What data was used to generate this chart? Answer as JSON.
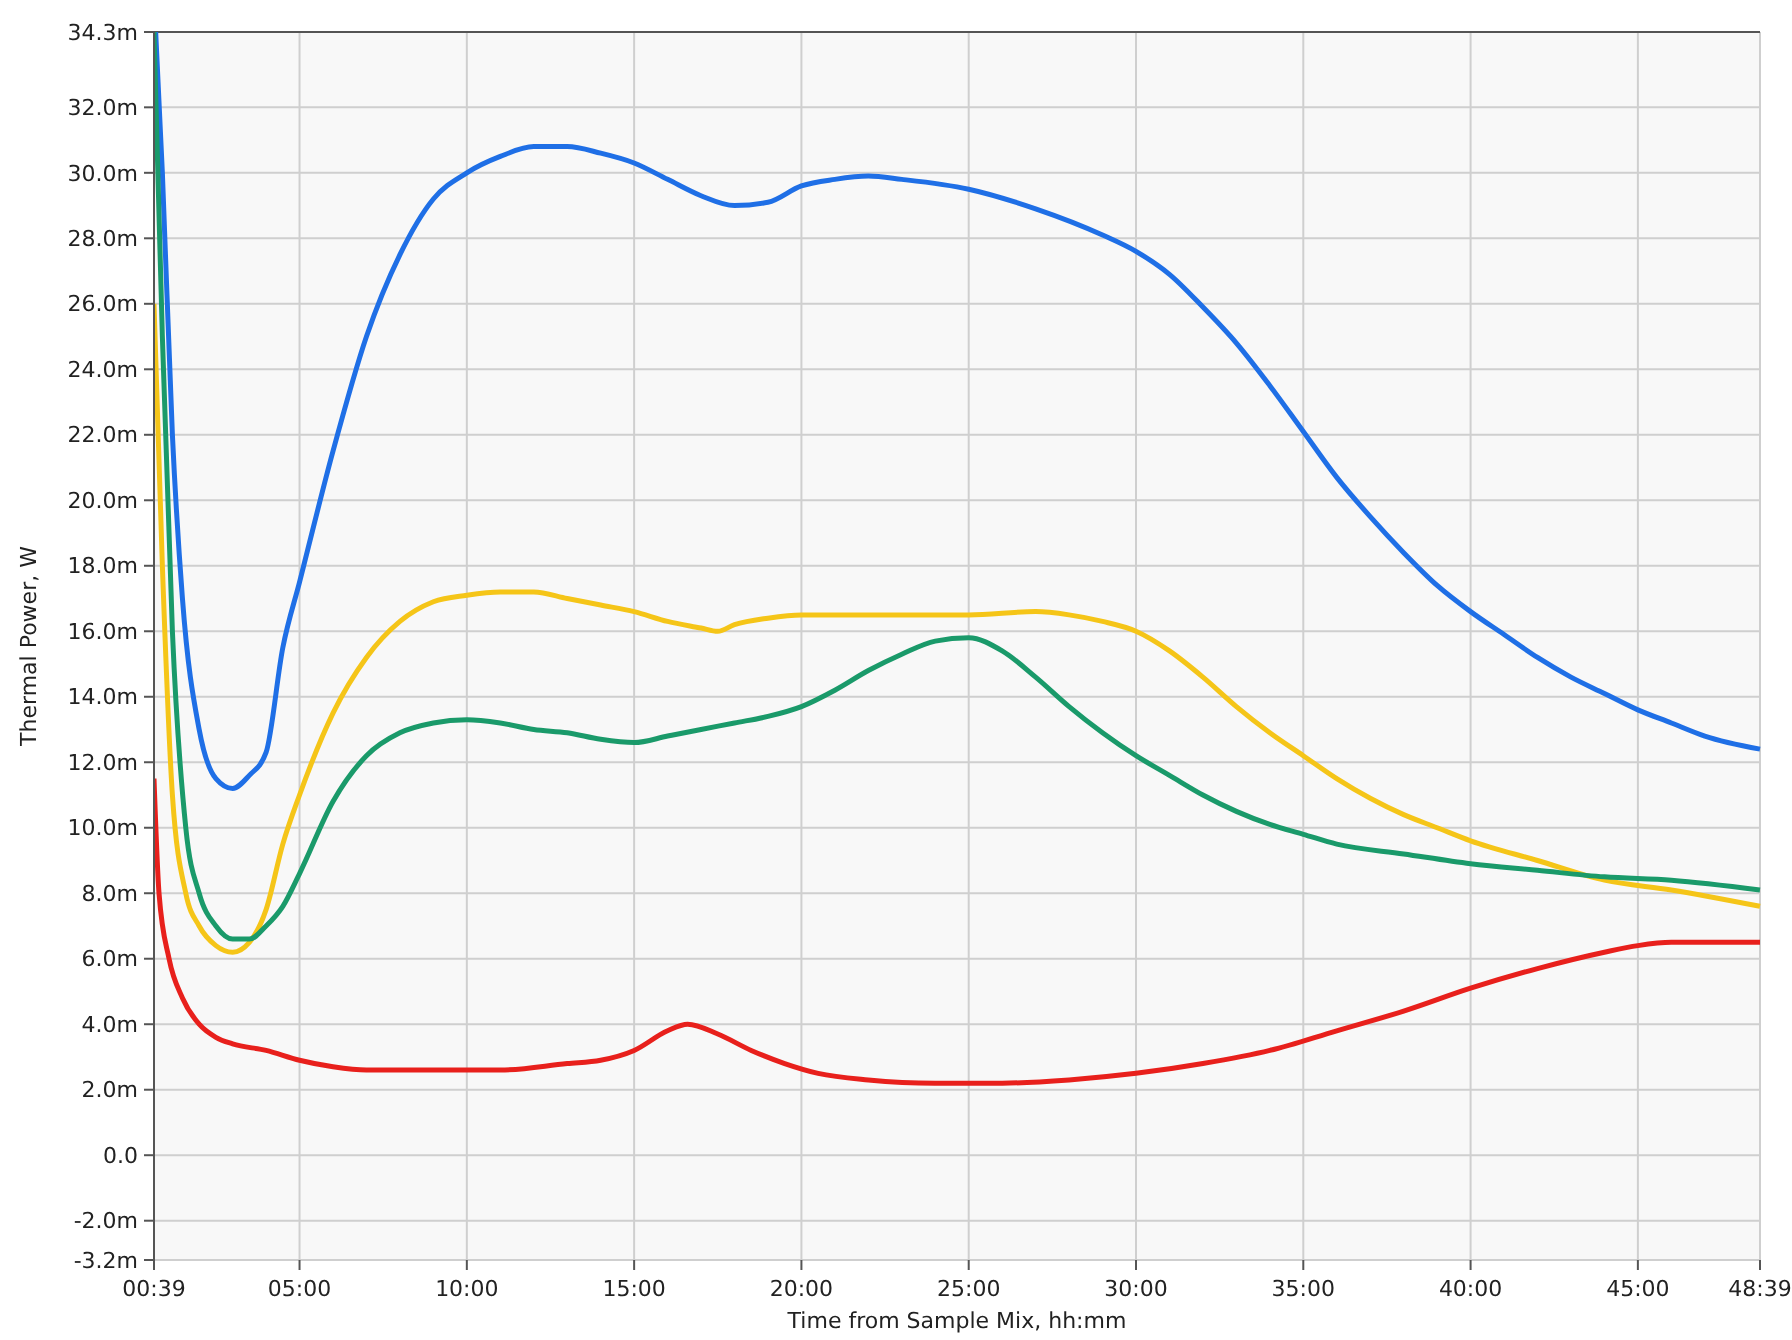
{
  "chart_data": {
    "type": "line",
    "xlabel": "Time from Sample Mix, hh:mm",
    "ylabel": "Thermal Power, W",
    "xlim": [
      0.65,
      48.65
    ],
    "xticks": [
      {
        "value": 0.65,
        "label": "00:39"
      },
      {
        "value": 5,
        "label": "05:00"
      },
      {
        "value": 10,
        "label": "10:00"
      },
      {
        "value": 15,
        "label": "15:00"
      },
      {
        "value": 20,
        "label": "20:00"
      },
      {
        "value": 25,
        "label": "25:00"
      },
      {
        "value": 30,
        "label": "30:00"
      },
      {
        "value": 35,
        "label": "35:00"
      },
      {
        "value": 40,
        "label": "40:00"
      },
      {
        "value": 45,
        "label": "45:00"
      },
      {
        "value": 48.65,
        "label": "48:39"
      }
    ],
    "ylim": [
      -3.2,
      34.3
    ],
    "yticks": [
      {
        "value": -3.2,
        "label": "-3.2m"
      },
      {
        "value": -2,
        "label": "-2.0m"
      },
      {
        "value": 0,
        "label": "0.0"
      },
      {
        "value": 2,
        "label": "2.0m"
      },
      {
        "value": 4,
        "label": "4.0m"
      },
      {
        "value": 6,
        "label": "6.0m"
      },
      {
        "value": 8,
        "label": "8.0m"
      },
      {
        "value": 10,
        "label": "10.0m"
      },
      {
        "value": 12,
        "label": "12.0m"
      },
      {
        "value": 14,
        "label": "14.0m"
      },
      {
        "value": 16,
        "label": "16.0m"
      },
      {
        "value": 18,
        "label": "18.0m"
      },
      {
        "value": 20,
        "label": "20.0m"
      },
      {
        "value": 22,
        "label": "22.0m"
      },
      {
        "value": 24,
        "label": "24.0m"
      },
      {
        "value": 26,
        "label": "26.0m"
      },
      {
        "value": 28,
        "label": "28.0m"
      },
      {
        "value": 30,
        "label": "30.0m"
      },
      {
        "value": 32,
        "label": "32.0m"
      },
      {
        "value": 34.3,
        "label": "34.3m"
      }
    ],
    "grid": true,
    "series": [
      {
        "color": "#1f6fe6",
        "x": [
          0.7,
          0.9,
          1.2,
          1.5,
          2,
          2.5,
          3,
          3.5,
          4,
          4.5,
          5,
          6,
          7,
          8,
          9,
          10,
          11,
          12,
          13,
          14,
          15,
          16,
          17,
          18,
          19,
          20,
          21,
          22,
          23,
          25,
          27,
          29,
          30,
          31,
          32,
          33,
          34,
          35,
          36,
          37,
          38,
          39,
          40,
          41,
          42,
          43,
          44,
          45,
          46,
          47,
          48.65
        ],
        "values": [
          34.3,
          30,
          22,
          17,
          13,
          11.5,
          11.2,
          11.6,
          12.3,
          15.5,
          17.5,
          21.5,
          25,
          27.5,
          29.2,
          30,
          30.5,
          30.8,
          30.8,
          30.6,
          30.3,
          29.8,
          29.3,
          29,
          29.1,
          29.6,
          29.8,
          29.9,
          29.8,
          29.5,
          28.9,
          28.1,
          27.6,
          26.9,
          25.9,
          24.8,
          23.5,
          22.1,
          20.7,
          19.5,
          18.4,
          17.4,
          16.6,
          15.9,
          15.2,
          14.6,
          14.1,
          13.6,
          13.2,
          12.8,
          12.4
        ]
      },
      {
        "color": "#f5c518",
        "x": [
          0.65,
          0.9,
          1.2,
          1.6,
          2,
          2.5,
          3,
          3.5,
          4,
          4.5,
          5,
          6,
          7,
          8,
          9,
          10,
          11,
          12,
          13,
          14,
          15,
          16,
          17,
          17.5,
          18,
          19,
          20,
          22,
          25,
          27,
          28,
          29,
          30,
          31,
          32,
          33,
          34,
          35,
          36,
          37,
          38,
          39,
          40,
          42,
          44,
          46,
          48.65
        ],
        "values": [
          26,
          18,
          11,
          8,
          7,
          6.4,
          6.2,
          6.5,
          7.5,
          9.5,
          11,
          13.5,
          15.2,
          16.3,
          16.9,
          17.1,
          17.2,
          17.2,
          17,
          16.8,
          16.6,
          16.3,
          16.1,
          16,
          16.2,
          16.4,
          16.5,
          16.5,
          16.5,
          16.6,
          16.5,
          16.3,
          16,
          15.4,
          14.6,
          13.7,
          12.9,
          12.2,
          11.5,
          10.9,
          10.4,
          10,
          9.6,
          9,
          8.4,
          8.1,
          7.6
        ]
      },
      {
        "color": "#1a9a6a",
        "x": [
          0.65,
          0.9,
          1.2,
          1.6,
          2,
          2.5,
          3,
          3.5,
          4,
          4.5,
          5,
          6,
          7,
          8,
          9,
          10,
          11,
          12,
          13,
          14,
          15,
          16,
          17,
          18,
          19,
          20,
          21,
          22,
          23,
          24,
          25,
          26,
          27,
          28,
          29,
          30,
          31,
          32,
          33,
          34,
          35,
          36,
          38,
          40,
          42,
          44,
          46,
          48.65
        ],
        "values": [
          34.3,
          25,
          16,
          10,
          8,
          7,
          6.6,
          6.6,
          7,
          7.6,
          8.6,
          10.8,
          12.2,
          12.9,
          13.2,
          13.3,
          13.2,
          13,
          12.9,
          12.7,
          12.6,
          12.8,
          13,
          13.2,
          13.4,
          13.7,
          14.2,
          14.8,
          15.3,
          15.7,
          15.8,
          15.4,
          14.6,
          13.7,
          12.9,
          12.2,
          11.6,
          11,
          10.5,
          10.1,
          9.8,
          9.5,
          9.2,
          8.9,
          8.7,
          8.5,
          8.4,
          8.1
        ]
      },
      {
        "color": "#e8201c",
        "x": [
          0.65,
          0.8,
          1.1,
          1.5,
          2,
          2.5,
          3,
          4,
          5,
          6,
          7,
          9,
          11,
          13,
          14,
          15,
          16,
          16.6,
          17.5,
          18.5,
          19.5,
          20.5,
          22,
          24,
          26,
          28,
          30,
          32,
          34,
          36,
          38,
          40,
          42,
          44,
          45,
          46,
          48.65
        ],
        "values": [
          11.5,
          8,
          6,
          4.8,
          4,
          3.6,
          3.4,
          3.2,
          2.9,
          2.7,
          2.6,
          2.6,
          2.6,
          2.8,
          2.9,
          3.2,
          3.8,
          4,
          3.7,
          3.2,
          2.8,
          2.5,
          2.3,
          2.2,
          2.2,
          2.3,
          2.5,
          2.8,
          3.2,
          3.8,
          4.4,
          5.1,
          5.7,
          6.2,
          6.4,
          6.5,
          6.5
        ]
      }
    ]
  }
}
